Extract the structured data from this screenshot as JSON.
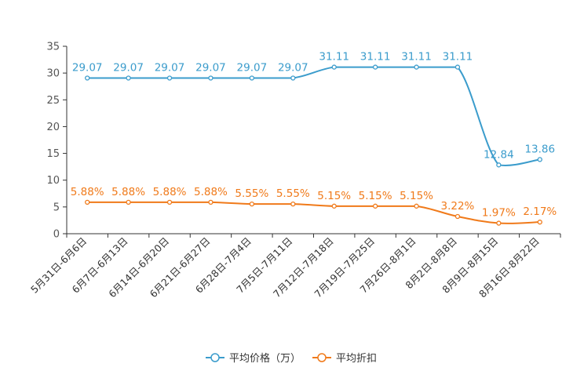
{
  "chart_data": {
    "type": "line",
    "categories": [
      "5月31日-6月6日",
      "6月7日-6月13日",
      "6月14日-6月20日",
      "6月21日-6月27日",
      "6月28日-7月4日",
      "7月5日-7月11日",
      "7月12日-7月18日",
      "7月19日-7月25日",
      "7月26日-8月1日",
      "8月2日-8月8日",
      "8月9日-8月15日",
      "8月16日-8月22日"
    ],
    "ylim": [
      0,
      35
    ],
    "yticks": [
      0,
      5,
      10,
      15,
      20,
      25,
      30,
      35
    ],
    "series": [
      {
        "name": "平均价格（万）",
        "color": "#3b9ccc",
        "values": [
          29.07,
          29.07,
          29.07,
          29.07,
          29.07,
          29.07,
          31.11,
          31.11,
          31.11,
          31.11,
          12.84,
          13.86
        ],
        "labels": [
          "29.07",
          "29.07",
          "29.07",
          "29.07",
          "29.07",
          "29.07",
          "31.11",
          "31.11",
          "31.11",
          "31.11",
          "12.84",
          "13.86"
        ]
      },
      {
        "name": "平均折扣",
        "color": "#f07a1a",
        "values": [
          5.88,
          5.88,
          5.88,
          5.88,
          5.55,
          5.55,
          5.15,
          5.15,
          5.15,
          3.22,
          1.97,
          2.17
        ],
        "labels": [
          "5.88%",
          "5.88%",
          "5.88%",
          "5.88%",
          "5.55%",
          "5.55%",
          "5.15%",
          "5.15%",
          "5.15%",
          "3.22%",
          "1.97%",
          "2.17%"
        ]
      }
    ],
    "legend": "bottom-center"
  }
}
